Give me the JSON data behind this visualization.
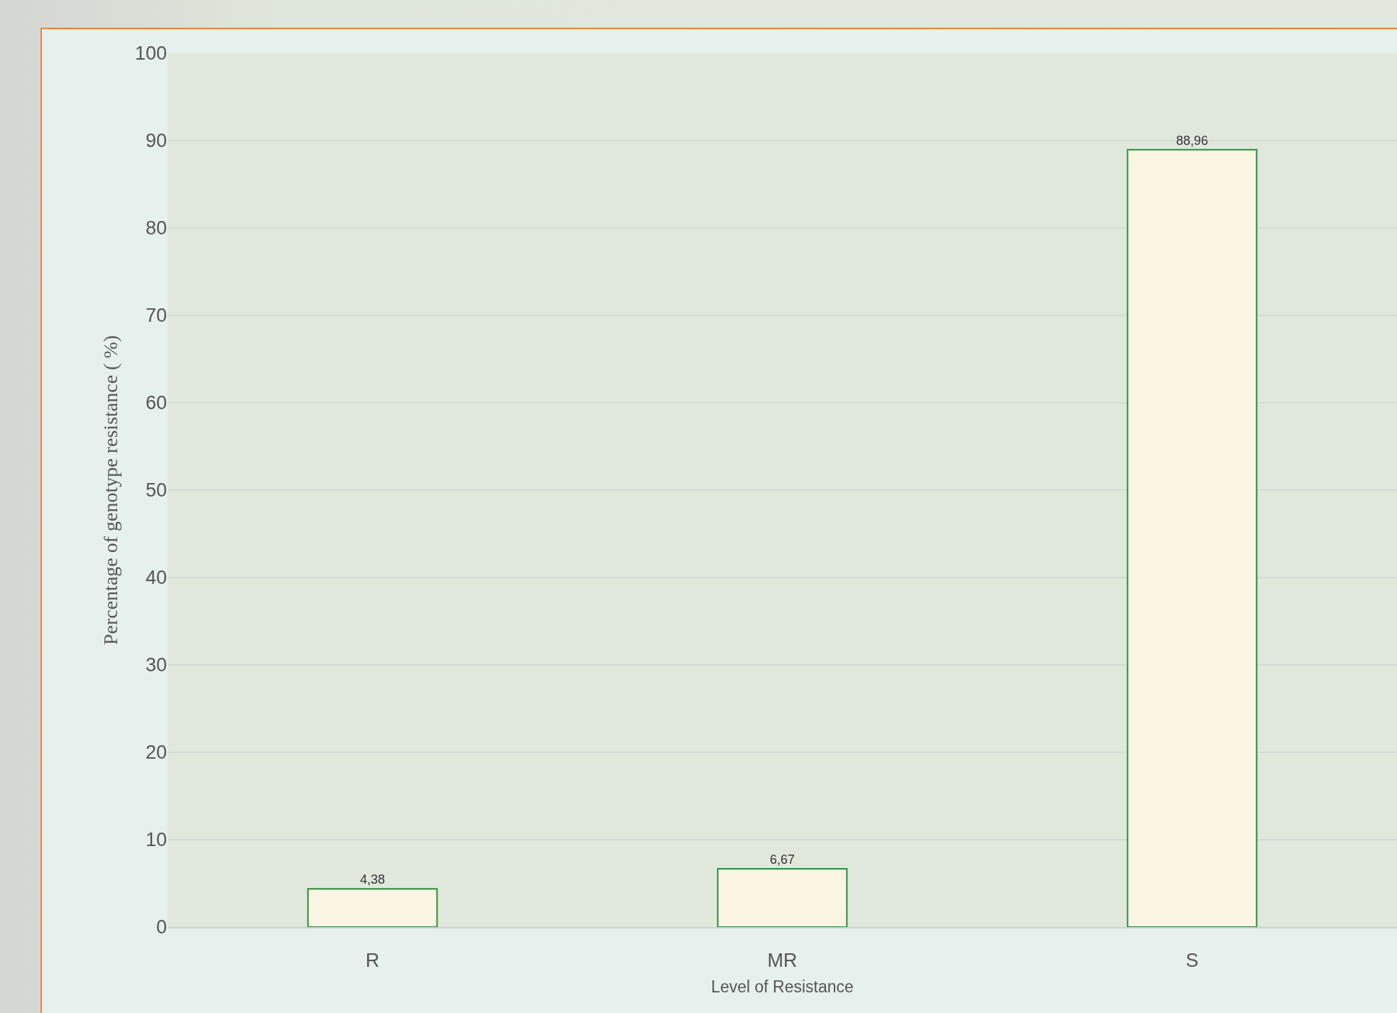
{
  "chart_data": {
    "type": "bar",
    "xlabel": "Level of Resistance",
    "ylabel": "Percentage of genotype resistance ( %)",
    "categories": [
      "R",
      "MR",
      "S"
    ],
    "values": [
      4.38,
      6.67,
      88.96
    ],
    "value_labels": [
      "4,38",
      "6,67",
      "88,96"
    ],
    "color": "#fbf6e4",
    "ylim": [
      0,
      100
    ],
    "yticks": [
      0,
      10,
      20,
      30,
      40,
      50,
      60,
      70,
      80,
      90,
      100
    ],
    "grid": "y",
    "legend": false
  }
}
